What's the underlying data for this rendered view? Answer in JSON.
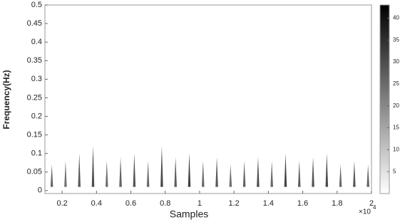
{
  "chart_data": {
    "type": "spectrogram",
    "xlabel": "Samples",
    "ylabel": "Frequency(Hz)",
    "x_multiplier": "×10",
    "x_exponent": "4",
    "xlim": [
      0.1,
      2
    ],
    "xticks": [
      0.2,
      0.4,
      0.6,
      0.8,
      1,
      1.2,
      1.4,
      1.6,
      1.8,
      2
    ],
    "ylim": [
      -0.008,
      0.5
    ],
    "yticks": [
      0,
      0.05,
      0.1,
      0.15,
      0.2,
      0.25,
      0.3,
      0.35,
      0.4,
      0.45,
      0.5
    ],
    "colormap": [
      "#ffffff",
      "#000000"
    ],
    "clim": [
      0,
      43
    ],
    "cticks": [
      5,
      10,
      15,
      20,
      25,
      30,
      35,
      40
    ],
    "streaks": {
      "x": [
        0.14,
        0.22,
        0.3,
        0.38,
        0.46,
        0.54,
        0.62,
        0.7,
        0.78,
        0.86,
        0.94,
        1.02,
        1.1,
        1.18,
        1.26,
        1.34,
        1.42,
        1.5,
        1.58,
        1.66,
        1.74,
        1.82,
        1.9,
        1.98
      ],
      "peak": [
        30,
        28,
        33,
        35,
        29,
        31,
        34,
        30,
        36,
        32,
        38,
        30,
        33,
        29,
        31,
        35,
        30,
        37,
        32,
        34,
        36,
        30,
        33,
        31
      ],
      "top": [
        0.07,
        0.08,
        0.1,
        0.12,
        0.08,
        0.09,
        0.1,
        0.08,
        0.12,
        0.09,
        0.1,
        0.08,
        0.09,
        0.07,
        0.08,
        0.09,
        0.08,
        0.1,
        0.08,
        0.09,
        0.1,
        0.07,
        0.08,
        0.07
      ]
    }
  }
}
